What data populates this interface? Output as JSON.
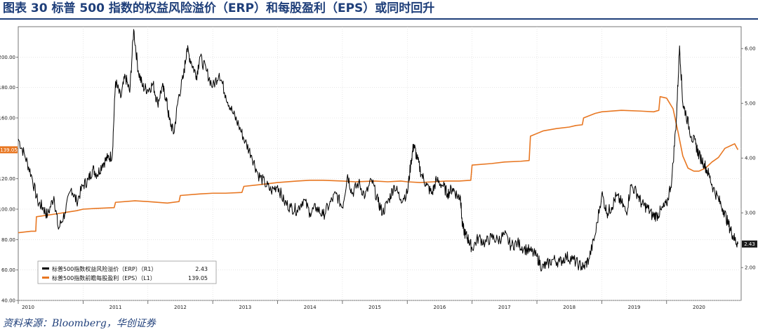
{
  "figure": {
    "title": "图表 30   标普 500 指数的权益风险溢价（ERP）和每股盈利（EPS）或同时回升",
    "source": "资料来源：Bloomberg，华创证券"
  },
  "colors": {
    "erp": "#000000",
    "eps": "#e87722",
    "title": "#1f3f7a",
    "eps_tag": "#e87722",
    "erp_tag": "#1a1a1a"
  },
  "chart_data": {
    "type": "line",
    "x_ticks": [
      "2010",
      "2011",
      "2012",
      "2013",
      "2014",
      "2015",
      "2016",
      "2017",
      "2018",
      "2019",
      "2020"
    ],
    "y_left": {
      "range": [
        40,
        220
      ],
      "ticks": [
        "40.00",
        "60.00",
        "80.00",
        "100.00",
        "120.00",
        "140.00",
        "160.00",
        "180.00",
        "200.00"
      ]
    },
    "y_right": {
      "range": [
        1.4,
        6.4
      ],
      "ticks": [
        "2.00",
        "3.00",
        "4.00",
        "5.00",
        "6.00"
      ]
    },
    "grid": true,
    "legend_position": "bottom-left",
    "series": [
      {
        "name": "标普500指数权益风险溢价（ERP）（R1）",
        "legend_value": "2.43",
        "axis": "right",
        "tag": "2.43",
        "points": [
          [
            2010.0,
            4.35
          ],
          [
            2010.1,
            4.05
          ],
          [
            2010.2,
            3.7
          ],
          [
            2010.3,
            3.2
          ],
          [
            2010.38,
            3.1
          ],
          [
            2010.45,
            2.95
          ],
          [
            2010.55,
            3.3
          ],
          [
            2010.62,
            2.7
          ],
          [
            2010.72,
            3.0
          ],
          [
            2010.82,
            3.45
          ],
          [
            2010.9,
            3.2
          ],
          [
            2011.0,
            3.5
          ],
          [
            2011.08,
            3.6
          ],
          [
            2011.15,
            3.8
          ],
          [
            2011.22,
            3.7
          ],
          [
            2011.3,
            3.9
          ],
          [
            2011.38,
            4.0
          ],
          [
            2011.45,
            4.05
          ],
          [
            2011.5,
            5.4
          ],
          [
            2011.58,
            5.1
          ],
          [
            2011.65,
            5.5
          ],
          [
            2011.72,
            5.2
          ],
          [
            2011.78,
            6.35
          ],
          [
            2011.85,
            5.6
          ],
          [
            2011.92,
            5.3
          ],
          [
            2012.0,
            5.25
          ],
          [
            2012.08,
            5.35
          ],
          [
            2012.15,
            5.0
          ],
          [
            2012.22,
            5.3
          ],
          [
            2012.28,
            5.1
          ],
          [
            2012.33,
            4.7
          ],
          [
            2012.4,
            4.45
          ],
          [
            2012.47,
            5.1
          ],
          [
            2012.55,
            5.5
          ],
          [
            2012.6,
            6.0
          ],
          [
            2012.67,
            5.75
          ],
          [
            2012.75,
            5.5
          ],
          [
            2012.8,
            5.85
          ],
          [
            2012.9,
            5.6
          ],
          [
            2013.0,
            5.3
          ],
          [
            2013.1,
            5.55
          ],
          [
            2013.2,
            5.15
          ],
          [
            2013.3,
            4.85
          ],
          [
            2013.4,
            4.6
          ],
          [
            2013.5,
            4.3
          ],
          [
            2013.6,
            4.05
          ],
          [
            2013.7,
            3.7
          ],
          [
            2013.8,
            3.55
          ],
          [
            2013.9,
            3.4
          ],
          [
            2014.0,
            3.5
          ],
          [
            2014.1,
            3.2
          ],
          [
            2014.2,
            3.1
          ],
          [
            2014.3,
            3.05
          ],
          [
            2014.4,
            3.25
          ],
          [
            2014.5,
            3.0
          ],
          [
            2014.6,
            3.1
          ],
          [
            2014.7,
            2.95
          ],
          [
            2014.8,
            3.15
          ],
          [
            2014.9,
            3.35
          ],
          [
            2015.0,
            3.1
          ],
          [
            2015.08,
            3.7
          ],
          [
            2015.15,
            3.35
          ],
          [
            2015.25,
            3.55
          ],
          [
            2015.35,
            3.3
          ],
          [
            2015.45,
            3.6
          ],
          [
            2015.55,
            3.2
          ],
          [
            2015.62,
            3.0
          ],
          [
            2015.72,
            3.25
          ],
          [
            2015.8,
            3.5
          ],
          [
            2015.9,
            3.25
          ],
          [
            2016.0,
            3.35
          ],
          [
            2016.06,
            3.95
          ],
          [
            2016.1,
            4.25
          ],
          [
            2016.15,
            4.0
          ],
          [
            2016.22,
            3.7
          ],
          [
            2016.3,
            3.5
          ],
          [
            2016.38,
            3.35
          ],
          [
            2016.45,
            3.6
          ],
          [
            2016.55,
            3.5
          ],
          [
            2016.62,
            3.35
          ],
          [
            2016.7,
            3.45
          ],
          [
            2016.78,
            3.3
          ],
          [
            2016.82,
            3.3
          ],
          [
            2016.85,
            2.75
          ],
          [
            2016.9,
            2.6
          ],
          [
            2016.95,
            2.5
          ],
          [
            2017.0,
            2.35
          ],
          [
            2017.1,
            2.55
          ],
          [
            2017.2,
            2.45
          ],
          [
            2017.3,
            2.55
          ],
          [
            2017.4,
            2.5
          ],
          [
            2017.5,
            2.6
          ],
          [
            2017.6,
            2.4
          ],
          [
            2017.7,
            2.45
          ],
          [
            2017.8,
            2.35
          ],
          [
            2017.9,
            2.3
          ],
          [
            2018.0,
            2.2
          ],
          [
            2018.08,
            2.0
          ],
          [
            2018.15,
            2.05
          ],
          [
            2018.25,
            2.15
          ],
          [
            2018.35,
            2.1
          ],
          [
            2018.45,
            2.2
          ],
          [
            2018.55,
            2.15
          ],
          [
            2018.65,
            2.05
          ],
          [
            2018.72,
            2.0
          ],
          [
            2018.8,
            2.15
          ],
          [
            2018.9,
            2.6
          ],
          [
            2019.0,
            3.35
          ],
          [
            2019.08,
            3.0
          ],
          [
            2019.15,
            3.1
          ],
          [
            2019.22,
            3.3
          ],
          [
            2019.3,
            3.2
          ],
          [
            2019.38,
            3.0
          ],
          [
            2019.45,
            3.5
          ],
          [
            2019.55,
            3.35
          ],
          [
            2019.62,
            3.15
          ],
          [
            2019.7,
            3.1
          ],
          [
            2019.78,
            2.95
          ],
          [
            2019.85,
            2.95
          ],
          [
            2019.92,
            3.05
          ],
          [
            2020.0,
            3.15
          ],
          [
            2020.08,
            3.6
          ],
          [
            2020.15,
            4.7
          ],
          [
            2020.2,
            6.05
          ],
          [
            2020.25,
            5.0
          ],
          [
            2020.3,
            4.8
          ],
          [
            2020.38,
            4.4
          ],
          [
            2020.45,
            4.25
          ],
          [
            2020.5,
            4.05
          ],
          [
            2020.58,
            3.9
          ],
          [
            2020.65,
            3.7
          ],
          [
            2020.72,
            3.45
          ],
          [
            2020.8,
            3.25
          ],
          [
            2020.88,
            3.05
          ],
          [
            2020.95,
            2.8
          ],
          [
            2021.0,
            2.65
          ],
          [
            2021.05,
            2.52
          ],
          [
            2021.1,
            2.43
          ]
        ]
      },
      {
        "name": "标普500指数前瞻每股盈利（EPS）（L1）",
        "legend_value": "139.05",
        "axis": "left",
        "tag": "139.05",
        "points": [
          [
            2010.0,
            84.5
          ],
          [
            2010.2,
            85.5
          ],
          [
            2010.27,
            85.5
          ],
          [
            2010.28,
            95
          ],
          [
            2010.6,
            97
          ],
          [
            2010.75,
            98
          ],
          [
            2010.9,
            99
          ],
          [
            2011.0,
            100
          ],
          [
            2011.2,
            100.5
          ],
          [
            2011.48,
            101
          ],
          [
            2011.5,
            104.5
          ],
          [
            2011.8,
            105.5
          ],
          [
            2012.0,
            105
          ],
          [
            2012.3,
            104
          ],
          [
            2012.48,
            105
          ],
          [
            2012.5,
            109
          ],
          [
            2012.8,
            110
          ],
          [
            2013.0,
            110.5
          ],
          [
            2013.2,
            110.5
          ],
          [
            2013.45,
            111
          ],
          [
            2013.48,
            115
          ],
          [
            2013.7,
            116
          ],
          [
            2014.0,
            117.5
          ],
          [
            2014.3,
            118.5
          ],
          [
            2014.5,
            119
          ],
          [
            2014.7,
            119
          ],
          [
            2015.0,
            118.5
          ],
          [
            2015.2,
            118
          ],
          [
            2015.5,
            118.5
          ],
          [
            2015.7,
            118
          ],
          [
            2015.9,
            118.5
          ],
          [
            2016.0,
            118
          ],
          [
            2016.2,
            117.5
          ],
          [
            2016.4,
            118
          ],
          [
            2016.6,
            118.5
          ],
          [
            2016.8,
            118.5
          ],
          [
            2016.98,
            119
          ],
          [
            2017.0,
            129
          ],
          [
            2017.3,
            130
          ],
          [
            2017.5,
            131
          ],
          [
            2017.75,
            131.5
          ],
          [
            2017.88,
            132
          ],
          [
            2017.9,
            148
          ],
          [
            2018.1,
            151.5
          ],
          [
            2018.3,
            153
          ],
          [
            2018.5,
            154
          ],
          [
            2018.6,
            155
          ],
          [
            2018.7,
            155.5
          ],
          [
            2018.72,
            160
          ],
          [
            2018.9,
            163
          ],
          [
            2019.0,
            164
          ],
          [
            2019.3,
            165
          ],
          [
            2019.6,
            164.5
          ],
          [
            2019.8,
            164
          ],
          [
            2019.88,
            165
          ],
          [
            2019.9,
            174
          ],
          [
            2020.0,
            173
          ],
          [
            2020.1,
            166
          ],
          [
            2020.18,
            150
          ],
          [
            2020.25,
            135
          ],
          [
            2020.33,
            127
          ],
          [
            2020.42,
            125
          ],
          [
            2020.5,
            125
          ],
          [
            2020.6,
            127
          ],
          [
            2020.7,
            131
          ],
          [
            2020.8,
            134
          ],
          [
            2020.9,
            140
          ],
          [
            2021.0,
            142
          ],
          [
            2021.05,
            143
          ],
          [
            2021.1,
            139.05
          ]
        ]
      }
    ]
  }
}
